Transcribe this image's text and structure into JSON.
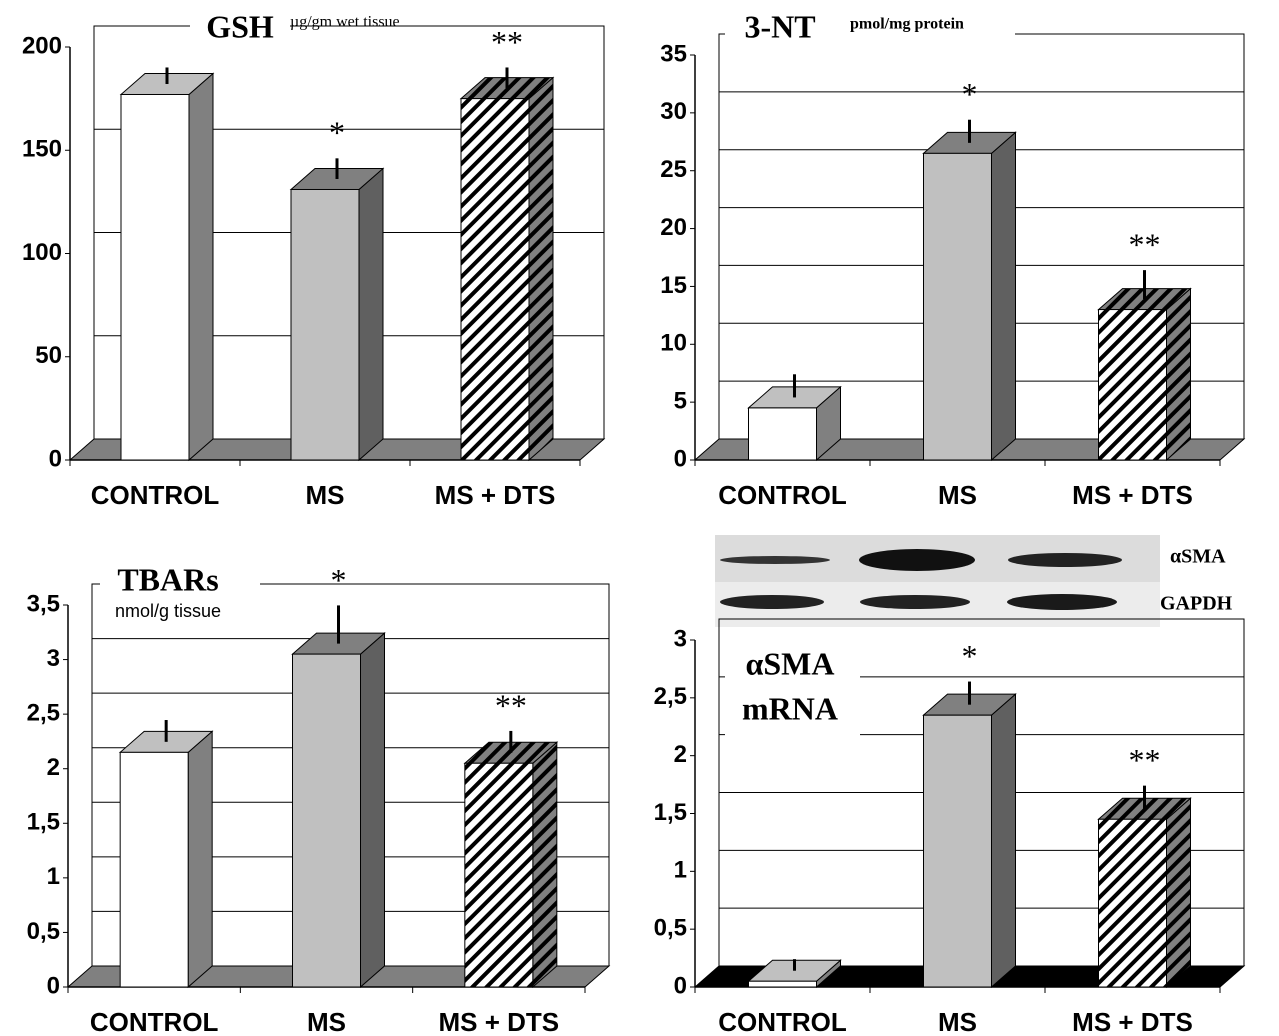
{
  "chart_data": [
    {
      "type": "bar3d",
      "title": "GSH",
      "subtitle": "µg/gm wet tissue",
      "categories": [
        "CONTROL",
        "MS",
        "MS + DTS"
      ],
      "values": [
        177,
        131,
        175
      ],
      "errors": [
        8,
        10,
        10
      ],
      "colors": [
        "#ffffff",
        "#c0c0c0",
        "#ffffff"
      ],
      "top_colors": [
        "#c0c0c0",
        "#808080",
        "#a0a0a0"
      ],
      "side_colors": [
        "#808080",
        "#606060",
        "#808080"
      ],
      "hatched": [
        false,
        false,
        true
      ],
      "annotations": [
        {
          "category": "MS",
          "text": "*"
        },
        {
          "category": "MS + DTS",
          "text": "**"
        }
      ],
      "ylim": [
        0,
        200
      ],
      "yticks": [
        0,
        50,
        100,
        150,
        200
      ],
      "grid": true,
      "floor_color": "#808080"
    },
    {
      "type": "bar3d",
      "title": "3-NT",
      "subtitle": "pmol/mg protein",
      "categories": [
        "CONTROL",
        "MS",
        "MS + DTS"
      ],
      "values": [
        4.5,
        26.5,
        13
      ],
      "errors": [
        2,
        2,
        2.5
      ],
      "colors": [
        "#ffffff",
        "#c0c0c0",
        "#ffffff"
      ],
      "top_colors": [
        "#c0c0c0",
        "#808080",
        "#a0a0a0"
      ],
      "side_colors": [
        "#808080",
        "#606060",
        "#808080"
      ],
      "hatched": [
        false,
        false,
        true
      ],
      "annotations": [
        {
          "category": "MS",
          "text": "*"
        },
        {
          "category": "MS + DTS",
          "text": "**"
        }
      ],
      "ylim": [
        0,
        35
      ],
      "yticks": [
        0,
        5,
        10,
        15,
        20,
        25,
        30,
        35
      ],
      "grid": true,
      "floor_color": "#808080"
    },
    {
      "type": "bar3d",
      "title": "TBARs",
      "subtitle": "nmol/g tissue",
      "categories": [
        "CONTROL",
        "MS",
        "MS + DTS"
      ],
      "values": [
        2.15,
        3.05,
        2.05
      ],
      "errors": [
        0.2,
        0.35,
        0.2
      ],
      "colors": [
        "#ffffff",
        "#c0c0c0",
        "#ffffff"
      ],
      "top_colors": [
        "#c0c0c0",
        "#808080",
        "#a0a0a0"
      ],
      "side_colors": [
        "#808080",
        "#606060",
        "#808080"
      ],
      "hatched": [
        false,
        false,
        true
      ],
      "annotations": [
        {
          "category": "MS",
          "text": "*"
        },
        {
          "category": "MS + DTS",
          "text": "**"
        }
      ],
      "ylim": [
        0,
        3.5
      ],
      "yticks": [
        0,
        {
          "value": 0.5,
          "label": "0,5"
        },
        1,
        {
          "value": 1.5,
          "label": "1,5"
        },
        2,
        {
          "value": 2.5,
          "label": "2,5"
        },
        3,
        {
          "value": 3.5,
          "label": "3,5"
        }
      ],
      "grid": true,
      "floor_color": "#808080"
    },
    {
      "type": "bar3d",
      "title": [
        "αSMA",
        "mRNA"
      ],
      "blot_labels": [
        "αSMA",
        "GAPDH"
      ],
      "categories": [
        "CONTROL",
        "MS",
        "MS + DTS"
      ],
      "values": [
        0.05,
        2.35,
        1.45
      ],
      "errors": [
        0.1,
        0.2,
        0.2
      ],
      "colors": [
        "#ffffff",
        "#c0c0c0",
        "#ffffff"
      ],
      "top_colors": [
        "#c0c0c0",
        "#808080",
        "#a0a0a0"
      ],
      "side_colors": [
        "#808080",
        "#606060",
        "#808080"
      ],
      "hatched": [
        false,
        false,
        true
      ],
      "annotations": [
        {
          "category": "MS",
          "text": "*"
        },
        {
          "category": "MS + DTS",
          "text": "**"
        }
      ],
      "ylim": [
        0,
        3
      ],
      "yticks": [
        0,
        {
          "value": 0.5,
          "label": "0,5"
        },
        1,
        {
          "value": 1.5,
          "label": "1,5"
        },
        2,
        {
          "value": 2.5,
          "label": "2,5"
        },
        3
      ],
      "grid": true,
      "floor_color": "#000000"
    }
  ]
}
